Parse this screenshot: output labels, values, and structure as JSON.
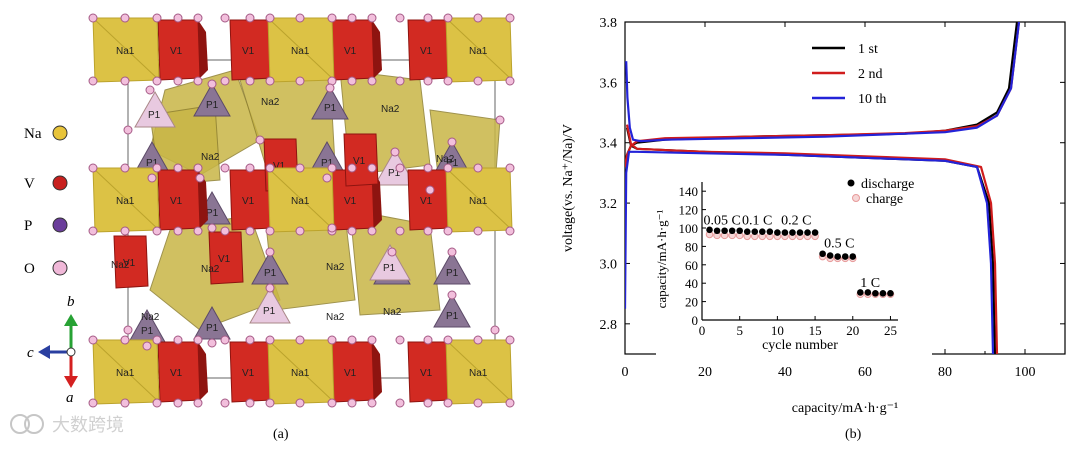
{
  "panel_a": {
    "caption": "(a)",
    "legend": [
      {
        "label": "Na",
        "color": "#e8c43a"
      },
      {
        "label": "V",
        "color": "#c8201e"
      },
      {
        "label": "P",
        "color": "#6a3d9a"
      },
      {
        "label": "O",
        "color": "#f0b8d8"
      }
    ],
    "axes": {
      "b": "b",
      "c": "c",
      "a": "a"
    },
    "polyhedron_labels": {
      "na1": "Na1",
      "na2": "Na2",
      "v1": "V1",
      "p1": "P1"
    },
    "watermark": "大数跨境"
  },
  "panel_b": {
    "caption": "(b)",
    "chart_data": [
      {
        "type": "line",
        "xlabel": "capacity/mA·h·g⁻¹",
        "ylabel": "voltage(vs. Na⁺/Na)/V",
        "xlim": [
          0,
          110
        ],
        "ylim": [
          2.7,
          3.8
        ],
        "xticks": [
          0,
          20,
          40,
          60,
          80,
          100
        ],
        "yticks": [
          2.8,
          3.0,
          3.2,
          3.4,
          3.6,
          3.8
        ],
        "legend_position": "top-right",
        "series": [
          {
            "name": "1 st",
            "color": "#000000",
            "segments": [
              [
                [
                  0,
                  3.32
                ],
                [
                  0.5,
                  3.36
                ],
                [
                  1.5,
                  3.39
                ],
                [
                  3,
                  3.4
                ],
                [
                  10,
                  3.41
                ],
                [
                  30,
                  3.42
                ],
                [
                  50,
                  3.425
                ],
                [
                  70,
                  3.43
                ],
                [
                  80,
                  3.44
                ],
                [
                  88,
                  3.46
                ],
                [
                  93,
                  3.5
                ],
                [
                  96,
                  3.58
                ],
                [
                  98,
                  3.8
                ]
              ],
              [
                [
                  0.5,
                  3.45
                ],
                [
                  1.5,
                  3.39
                ],
                [
                  3,
                  3.38
                ],
                [
                  20,
                  3.37
                ],
                [
                  40,
                  3.36
                ],
                [
                  60,
                  3.35
                ],
                [
                  80,
                  3.34
                ],
                [
                  88,
                  3.32
                ],
                [
                  91,
                  3.2
                ],
                [
                  92,
                  3.0
                ],
                [
                  92.5,
                  2.7
                ]
              ]
            ]
          },
          {
            "name": "2 nd",
            "color": "#d01c1c",
            "segments": [
              [
                [
                  0,
                  3.32
                ],
                [
                  0.5,
                  3.36
                ],
                [
                  1.5,
                  3.39
                ],
                [
                  3,
                  3.405
                ],
                [
                  10,
                  3.415
                ],
                [
                  30,
                  3.42
                ],
                [
                  50,
                  3.425
                ],
                [
                  70,
                  3.432
                ],
                [
                  80,
                  3.44
                ],
                [
                  88,
                  3.455
                ],
                [
                  93,
                  3.49
                ],
                [
                  96.5,
                  3.58
                ],
                [
                  98.5,
                  3.8
                ]
              ],
              [
                [
                  0.5,
                  3.46
                ],
                [
                  1.5,
                  3.395
                ],
                [
                  3,
                  3.38
                ],
                [
                  20,
                  3.37
                ],
                [
                  40,
                  3.365
                ],
                [
                  60,
                  3.355
                ],
                [
                  80,
                  3.345
                ],
                [
                  89,
                  3.32
                ],
                [
                  91.5,
                  3.2
                ],
                [
                  92.5,
                  3.0
                ],
                [
                  93,
                  2.7
                ]
              ]
            ]
          },
          {
            "name": "10 th",
            "color": "#2323d8",
            "segments": [
              [
                [
                  0.3,
                  3.67
                ],
                [
                  0.6,
                  3.55
                ],
                [
                  1.2,
                  3.45
                ],
                [
                  2,
                  3.41
                ],
                [
                  4,
                  3.405
                ],
                [
                  10,
                  3.41
                ],
                [
                  30,
                  3.415
                ],
                [
                  50,
                  3.42
                ],
                [
                  70,
                  3.43
                ],
                [
                  80,
                  3.435
                ],
                [
                  88,
                  3.45
                ],
                [
                  93,
                  3.49
                ],
                [
                  96.5,
                  3.58
                ],
                [
                  98.5,
                  3.8
                ]
              ],
              [
                [
                  0,
                  2.85
                ],
                [
                  0.3,
                  3.3
                ],
                [
                  1,
                  3.37
                ],
                [
                  3,
                  3.37
                ],
                [
                  20,
                  3.365
                ],
                [
                  40,
                  3.36
                ],
                [
                  60,
                  3.35
                ],
                [
                  80,
                  3.34
                ],
                [
                  88,
                  3.32
                ],
                [
                  90.5,
                  3.2
                ],
                [
                  91.5,
                  3.0
                ],
                [
                  92,
                  2.7
                ]
              ]
            ]
          }
        ]
      },
      {
        "type": "scatter",
        "xlabel": "cycle number",
        "ylabel": "capacity/mA·h·g⁻¹",
        "xlim": [
          0,
          26
        ],
        "ylim": [
          0,
          150
        ],
        "xticks": [
          0,
          5,
          10,
          15,
          20,
          25
        ],
        "yticks": [
          0,
          20,
          40,
          60,
          80,
          100,
          120,
          140
        ],
        "legend_position": "top-right",
        "series": [
          {
            "name": "discharge",
            "color": "#000000",
            "x": [
              1,
              2,
              3,
              4,
              5,
              6,
              7,
              8,
              9,
              10,
              11,
              12,
              13,
              14,
              15,
              16,
              17,
              18,
              19,
              20,
              21,
              22,
              23,
              24,
              25
            ],
            "values": [
              98,
              97,
              97,
              97,
              97,
              96,
              96,
              96,
              96,
              95,
              95,
              95,
              95,
              95,
              95,
              72,
              70,
              69,
              69,
              69,
              30,
              30,
              29,
              29,
              29
            ]
          },
          {
            "name": "charge",
            "color": "#e79a9a",
            "x": [
              1,
              2,
              3,
              4,
              5,
              6,
              7,
              8,
              9,
              10,
              11,
              12,
              13,
              14,
              15,
              16,
              17,
              18,
              19,
              20,
              21,
              22,
              23,
              24,
              25
            ],
            "values": [
              93,
              92,
              92,
              92,
              92,
              91,
              91,
              91,
              91,
              91,
              91,
              91,
              91,
              91,
              91,
              69,
              67,
              67,
              67,
              67,
              28,
              28,
              28,
              28,
              28
            ]
          }
        ],
        "annotations": [
          {
            "text": "0.05 C",
            "x": 0.2,
            "y": 104
          },
          {
            "text": "0.1 C",
            "x": 5.3,
            "y": 104
          },
          {
            "text": "0.2 C",
            "x": 10.5,
            "y": 104
          },
          {
            "text": "0.5 C",
            "x": 16.2,
            "y": 79
          },
          {
            "text": "1 C",
            "x": 21,
            "y": 36
          }
        ]
      }
    ]
  }
}
